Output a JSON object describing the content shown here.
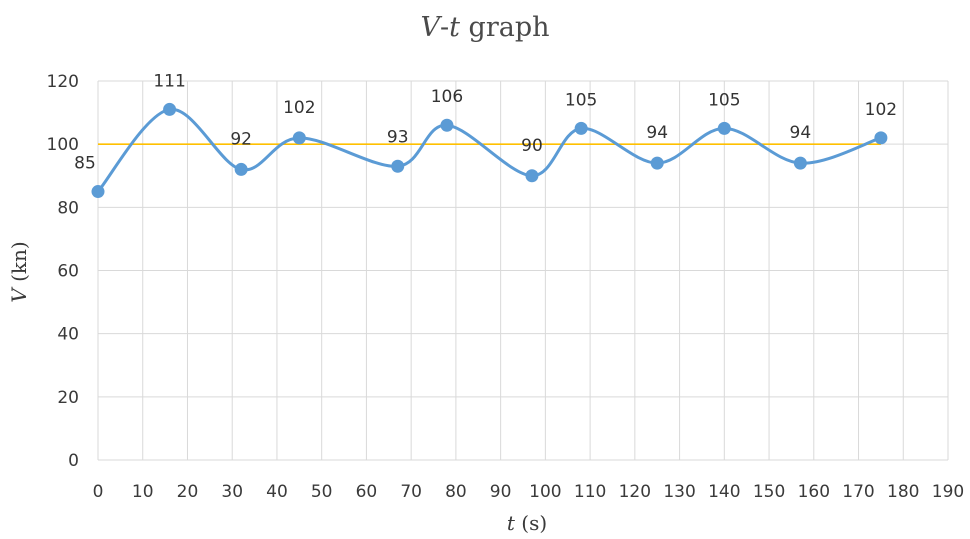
{
  "chart_data": {
    "type": "line",
    "title_var1": "V",
    "title_sep": "-",
    "title_var2": "t",
    "title_rest": " graph",
    "xlabel_var": "t",
    "xlabel_unit": " (s)",
    "ylabel_var": "V",
    "ylabel_unit": " (kn)",
    "xlim": [
      0,
      190
    ],
    "ylim": [
      0,
      120
    ],
    "x_ticks": [
      0,
      10,
      20,
      30,
      40,
      50,
      60,
      70,
      80,
      90,
      100,
      110,
      120,
      130,
      140,
      150,
      160,
      170,
      180,
      190
    ],
    "y_ticks": [
      0,
      20,
      40,
      60,
      80,
      100,
      120
    ],
    "grid": true,
    "series": [
      {
        "color": "#5b9bd5",
        "smooth": true,
        "data_labels": true,
        "x": [
          0,
          16,
          32,
          45,
          67,
          78,
          97,
          108,
          125,
          140,
          157,
          175
        ],
        "y": [
          85,
          111,
          92,
          102,
          93,
          106,
          90,
          105,
          94,
          105,
          94,
          102
        ]
      }
    ],
    "reference_line": {
      "y": 100,
      "x_from": 0,
      "x_to": 175,
      "color": "#ffc000"
    }
  }
}
